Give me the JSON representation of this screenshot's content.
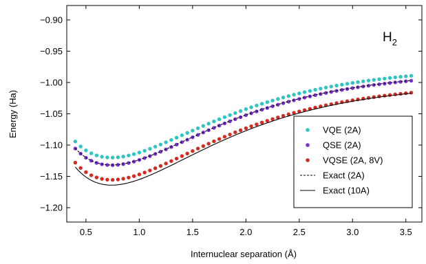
{
  "chart_data": {
    "type": "scatter",
    "title": "H2",
    "title_main": "H",
    "title_sub": "2",
    "xlabel": "Internuclear separation (Å)",
    "ylabel": "Energy (Ha)",
    "xlim": [
      0.32,
      3.65
    ],
    "ylim": [
      -1.223,
      -0.877
    ],
    "xticks": [
      0.5,
      1.0,
      1.5,
      2.0,
      2.5,
      3.0,
      3.5
    ],
    "xtick_labels": [
      "0.5",
      "1.0",
      "1.5",
      "2.0",
      "2.5",
      "3.0",
      "3.5"
    ],
    "yticks": [
      -0.9,
      -0.95,
      -1.0,
      -1.05,
      -1.1,
      -1.15,
      -1.2
    ],
    "ytick_labels": [
      "−0.90",
      "−0.95",
      "−1.00",
      "−1.05",
      "−1.10",
      "−1.15",
      "−1.20"
    ],
    "legend_position": "lower right",
    "series": [
      {
        "name": "VQE (2A)",
        "kind": "points",
        "color": "#2ec4c4",
        "params": {
          "De": 0.1465,
          "a": 1.03,
          "re": 0.74,
          "Einf": -0.9735
        }
      },
      {
        "name": "QSE (2A)",
        "kind": "points",
        "color": "#7d2fd0",
        "params": {
          "De": 0.1511,
          "a": 1.03,
          "re": 0.74,
          "Einf": -0.981
        }
      },
      {
        "name": "VQSE (2A, 8V)",
        "kind": "points",
        "color": "#d42a20",
        "params": {
          "De": 0.156,
          "a": 1.03,
          "re": 0.74,
          "Einf": -0.9995
        }
      },
      {
        "name": "Exact (2A)",
        "kind": "dashed-line",
        "color": "#000000",
        "params": {
          "De": 0.1513,
          "a": 1.03,
          "re": 0.74,
          "Einf": -0.9805
        }
      },
      {
        "name": "Exact (10A)",
        "kind": "solid-line",
        "color": "#000000",
        "params": {
          "De": 0.1645,
          "a": 1.03,
          "re": 0.74,
          "Einf": -0.9995
        }
      }
    ],
    "point_x": [
      0.4,
      0.45,
      0.5,
      0.55,
      0.6,
      0.65,
      0.7,
      0.75,
      0.8,
      0.85,
      0.9,
      0.95,
      1.0,
      1.05,
      1.1,
      1.15,
      1.2,
      1.25,
      1.3,
      1.35,
      1.4,
      1.45,
      1.5,
      1.55,
      1.6,
      1.65,
      1.7,
      1.75,
      1.8,
      1.85,
      1.9,
      1.95,
      2.0,
      2.05,
      2.1,
      2.15,
      2.2,
      2.25,
      2.3,
      2.35,
      2.4,
      2.45,
      2.5,
      2.55,
      2.6,
      2.65,
      2.7,
      2.75,
      2.8,
      2.85,
      2.9,
      2.95,
      3.0,
      3.05,
      3.1,
      3.15,
      3.2,
      3.25,
      3.3,
      3.35,
      3.4,
      3.45,
      3.5,
      3.55
    ],
    "line_x_start": 0.4,
    "line_x_end": 3.55
  }
}
